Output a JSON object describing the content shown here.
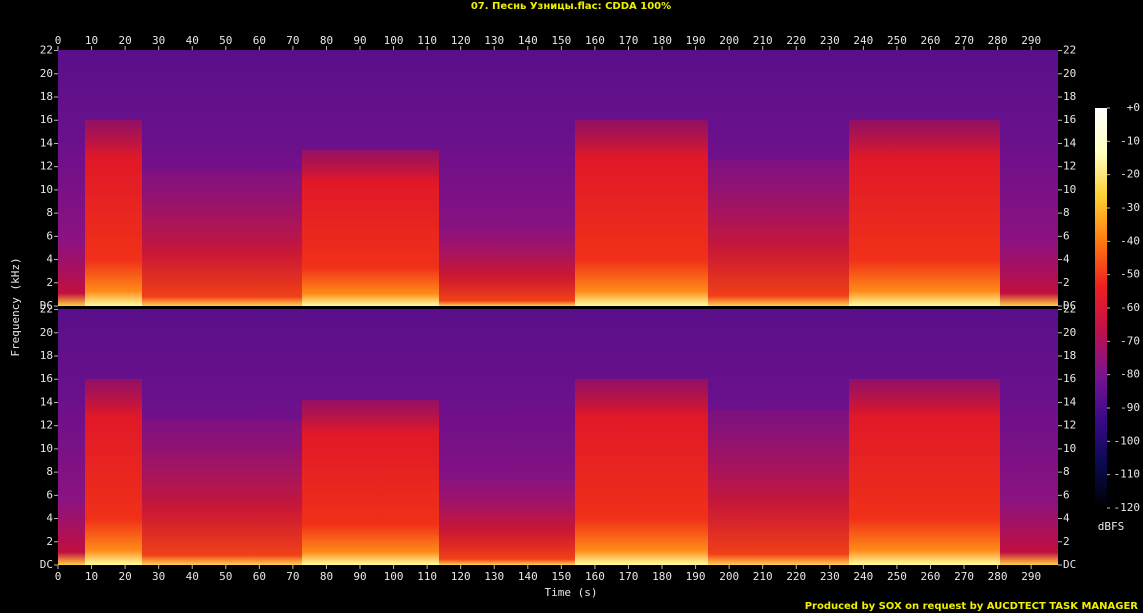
{
  "chart_data": {
    "type": "spectrogram",
    "title": "07. Песнь Узницы.flac: CDDA 100%",
    "x_label": "Time (s)",
    "y_label": "Frequency (kHz)",
    "xlim": [
      0,
      298
    ],
    "xticks": [
      0,
      10,
      20,
      30,
      40,
      50,
      60,
      70,
      80,
      90,
      100,
      110,
      120,
      130,
      140,
      150,
      160,
      170,
      180,
      190,
      200,
      210,
      220,
      230,
      240,
      250,
      260,
      270,
      280,
      290
    ],
    "ylim": [
      0,
      22.05
    ],
    "yticks": [
      {
        "value": 0,
        "label": "DC"
      },
      2,
      4,
      6,
      8,
      10,
      12,
      14,
      16,
      18,
      20,
      22
    ],
    "colorbar": {
      "label": "dBFS",
      "lim": [
        -120,
        0
      ],
      "ticks": [
        {
          "value": 0,
          "label": "+0"
        },
        -10,
        -20,
        -30,
        -40,
        -50,
        -60,
        -70,
        -80,
        -90,
        -100,
        -110,
        -120
      ],
      "colors": [
        "#000000",
        "#0a0a50",
        "#3a0a8a",
        "#7a1490",
        "#c0104a",
        "#f02020",
        "#ff7a10",
        "#ffd030",
        "#ffffc0",
        "#ffffff"
      ]
    },
    "footer": "Produced by SOX on request by AUCDTECT TASK MANAGER"
  }
}
